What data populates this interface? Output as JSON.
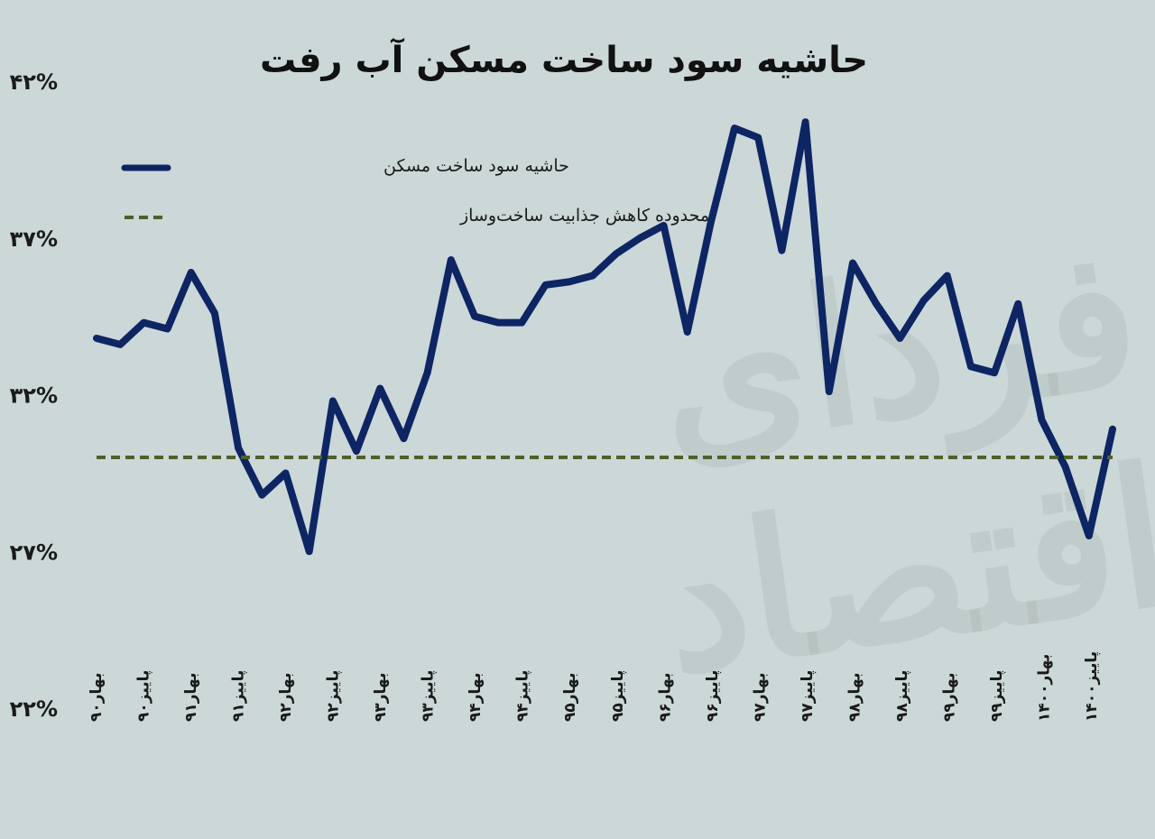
{
  "title": "حاشیه سود ساخت مسکن آب رفت",
  "watermark": "فردای اقتصاد",
  "legend": [
    {
      "label": "حاشیه سود ساخت مسکن",
      "color": "#0d2563",
      "style": "solid"
    },
    {
      "label": "محدوده کاهش جذابیت ساخت‌وساز",
      "color": "#4f6028",
      "style": "dashed"
    }
  ],
  "chart_data": {
    "type": "line",
    "title": "حاشیه سود ساخت مسکن آب رفت",
    "ylim": [
      22,
      42
    ],
    "y_ticks": [
      22,
      27,
      32,
      37,
      42
    ],
    "y_tick_labels": [
      "۲۲%",
      "۲۷%",
      "۳۲%",
      "۳۷%",
      "۴۲%"
    ],
    "x_tick_labels": [
      "بهار۹۰",
      "پاییز۹۰",
      "بهار۹۱",
      "پاییز۹۱",
      "بهار۹۲",
      "پاییز۹۲",
      "بهار۹۳",
      "پاییز۹۳",
      "بهار۹۴",
      "پاییز۹۴",
      "بهار۹۵",
      "پاییز۹۵",
      "بهار۹۶",
      "پاییز۹۶",
      "بهار۹۷",
      "پاییز۹۷",
      "بهار۹۸",
      "پاییز۹۸",
      "بهار۹۹",
      "پاییز۹۹",
      "بهار۱۴۰۰",
      "پاییز۱۴۰۰"
    ],
    "grid": false,
    "legend_position": "top-left",
    "series": [
      {
        "name": "حاشیه سود ساخت مسکن",
        "color": "#0d2563",
        "values": [
          33.8,
          33.6,
          34.3,
          34.1,
          35.9,
          34.6,
          30.3,
          28.8,
          29.5,
          27.0,
          31.8,
          30.2,
          32.2,
          30.6,
          32.7,
          36.3,
          34.5,
          34.3,
          34.3,
          35.5,
          35.6,
          35.8,
          36.5,
          37.0,
          37.4,
          34.0,
          37.5,
          40.5,
          40.2,
          36.6,
          40.7,
          32.1,
          36.2,
          34.9,
          33.8,
          35.0,
          35.8,
          32.9,
          32.7,
          34.9,
          31.2,
          29.7,
          27.5,
          30.9
        ]
      },
      {
        "name": "محدوده کاهش جذابیت ساخت‌وساز",
        "color": "#4f6028",
        "constant": 30.0
      }
    ]
  }
}
